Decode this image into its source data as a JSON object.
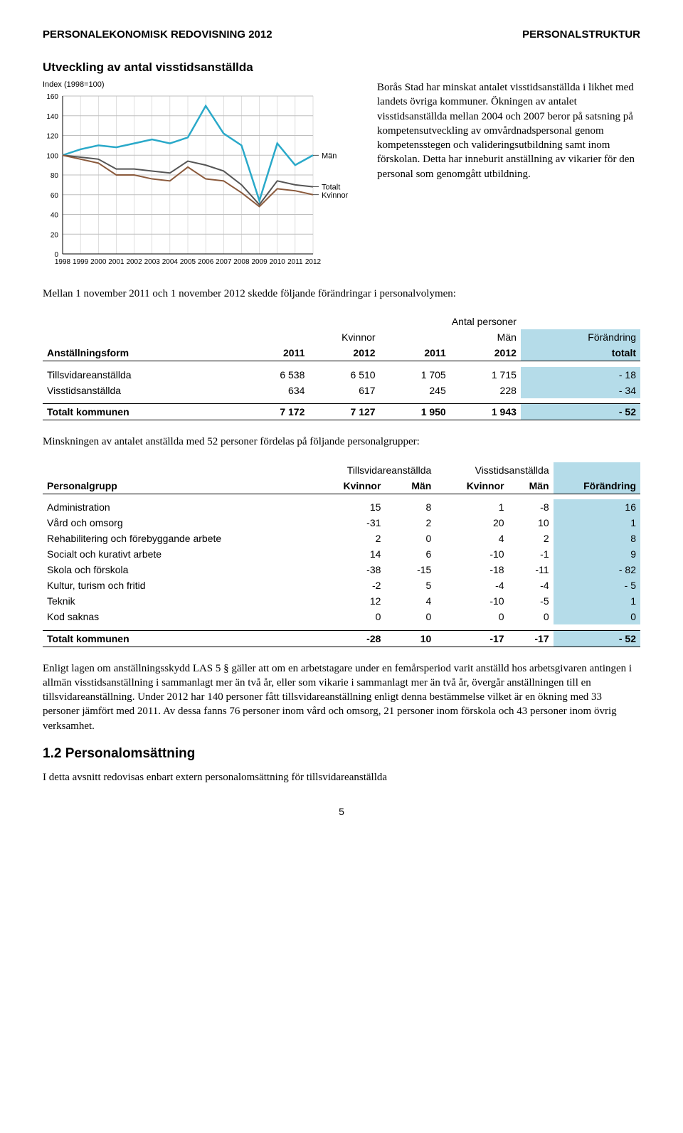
{
  "header": {
    "left": "PERSONALEKONOMISK REDOVISNING 2012",
    "right": "PERSONALSTRUKTUR"
  },
  "chart": {
    "title": "Utveckling av antal visstidsanställda",
    "caption": "Index (1998=100)",
    "ylim": [
      0,
      160
    ],
    "ytick_step": 20,
    "yticks": [
      0,
      20,
      40,
      60,
      80,
      100,
      120,
      140,
      160
    ],
    "years": [
      1998,
      1999,
      2000,
      2001,
      2002,
      2003,
      2004,
      2005,
      2006,
      2007,
      2008,
      2009,
      2010,
      2011,
      2012
    ],
    "series": [
      {
        "label": "Män",
        "color": "#2aa9c9",
        "width": 2.5,
        "values": [
          100,
          106,
          110,
          108,
          112,
          116,
          112,
          118,
          150,
          122,
          110,
          54,
          112,
          90,
          100
        ]
      },
      {
        "label": "Totalt",
        "color": "#555555",
        "width": 2.0,
        "values": [
          100,
          98,
          96,
          86,
          86,
          84,
          82,
          94,
          90,
          84,
          70,
          50,
          74,
          70,
          68
        ]
      },
      {
        "label": "Kvinnor",
        "color": "#8b5a3c",
        "width": 2.0,
        "values": [
          100,
          96,
          92,
          80,
          80,
          76,
          74,
          88,
          76,
          74,
          62,
          48,
          66,
          64,
          60
        ]
      }
    ],
    "background_color": "#ffffff",
    "grid_color": "#bfbfbf",
    "axis_fontsize": 10,
    "label_fontsize": 11
  },
  "side_text": "Borås Stad har minskat antalet visstidsanställda i likhet med landets övriga kommuner. Ökningen av antalet visstidsanställda mellan 2004 och 2007 beror på satsning på kompetensutveckling av omvårdnadspersonal genom kompetensstegen och valideringsutbildning samt inom förskolan. Detta har inneburit anställning av vikarier för den personal som genomgått utbildning.",
  "para_between": "Mellan 1 november 2011 och 1 november 2012 skedde följande förändringar i personalvolymen:",
  "table1": {
    "super_header": "Antal personer",
    "group_headers": [
      "Kvinnor",
      "Män",
      "Förändring"
    ],
    "col_headers": [
      "Anställningsform",
      "2011",
      "2012",
      "2011",
      "2012",
      "totalt"
    ],
    "rows": [
      [
        "Tillsvidareanställda",
        "6 538",
        "6 510",
        "1 705",
        "1 715",
        "- 18"
      ],
      [
        "Visstidsanställda",
        "634",
        "617",
        "245",
        "228",
        "- 34"
      ]
    ],
    "total": [
      "Totalt kommunen",
      "7 172",
      "7 127",
      "1 950",
      "1 943",
      "- 52"
    ]
  },
  "para_after_t1": "Minskningen av antalet anställda med 52 personer fördelas på följande personalgrupper:",
  "table2": {
    "group_headers": [
      "Tillsvidareanställda",
      "Visstidsanställda",
      ""
    ],
    "col_headers": [
      "Personalgrupp",
      "Kvinnor",
      "Män",
      "Kvinnor",
      "Män",
      "Förändring"
    ],
    "rows": [
      [
        "Administration",
        "15",
        "8",
        "1",
        "-8",
        "16"
      ],
      [
        "Vård och omsorg",
        "-31",
        "2",
        "20",
        "10",
        "1"
      ],
      [
        "Rehabilitering och förebyggande arbete",
        "2",
        "0",
        "4",
        "2",
        "8"
      ],
      [
        "Socialt och kurativt arbete",
        "14",
        "6",
        "-10",
        "-1",
        "9"
      ],
      [
        "Skola och förskola",
        "-38",
        "-15",
        "-18",
        "-11",
        "- 82"
      ],
      [
        "Kultur, turism och fritid",
        "-2",
        "5",
        "-4",
        "-4",
        "-  5"
      ],
      [
        "Teknik",
        "12",
        "4",
        "-10",
        "-5",
        "1"
      ],
      [
        "Kod saknas",
        "0",
        "0",
        "0",
        "0",
        "0"
      ]
    ],
    "total": [
      "Totalt kommunen",
      "-28",
      "10",
      "-17",
      "-17",
      "- 52"
    ]
  },
  "para_las": "Enligt lagen om anställningsskydd LAS 5 § gäller att om en arbetstagare under en femårsperiod varit anställd hos arbetsgivaren antingen i allmän visstidsanställning i sammanlagt mer än två år, eller som vikarie i sammanlagt mer än två år, övergår anställningen till en tillsvidareanställning. Under 2012 har 140 personer fått tillsvidareanställning enligt denna bestämmelse vilket är en ökning med 33 personer jämfört med 2011. Av dessa fanns 76 personer inom vård och omsorg, 21 personer inom förskola och 43 personer inom övrig verksamhet.",
  "section_1_2": {
    "heading": "1.2 Personalomsättning",
    "body": "I detta avsnitt redovisas enbart extern personalomsättning för tillsvidareanställda"
  },
  "page_number": "5"
}
